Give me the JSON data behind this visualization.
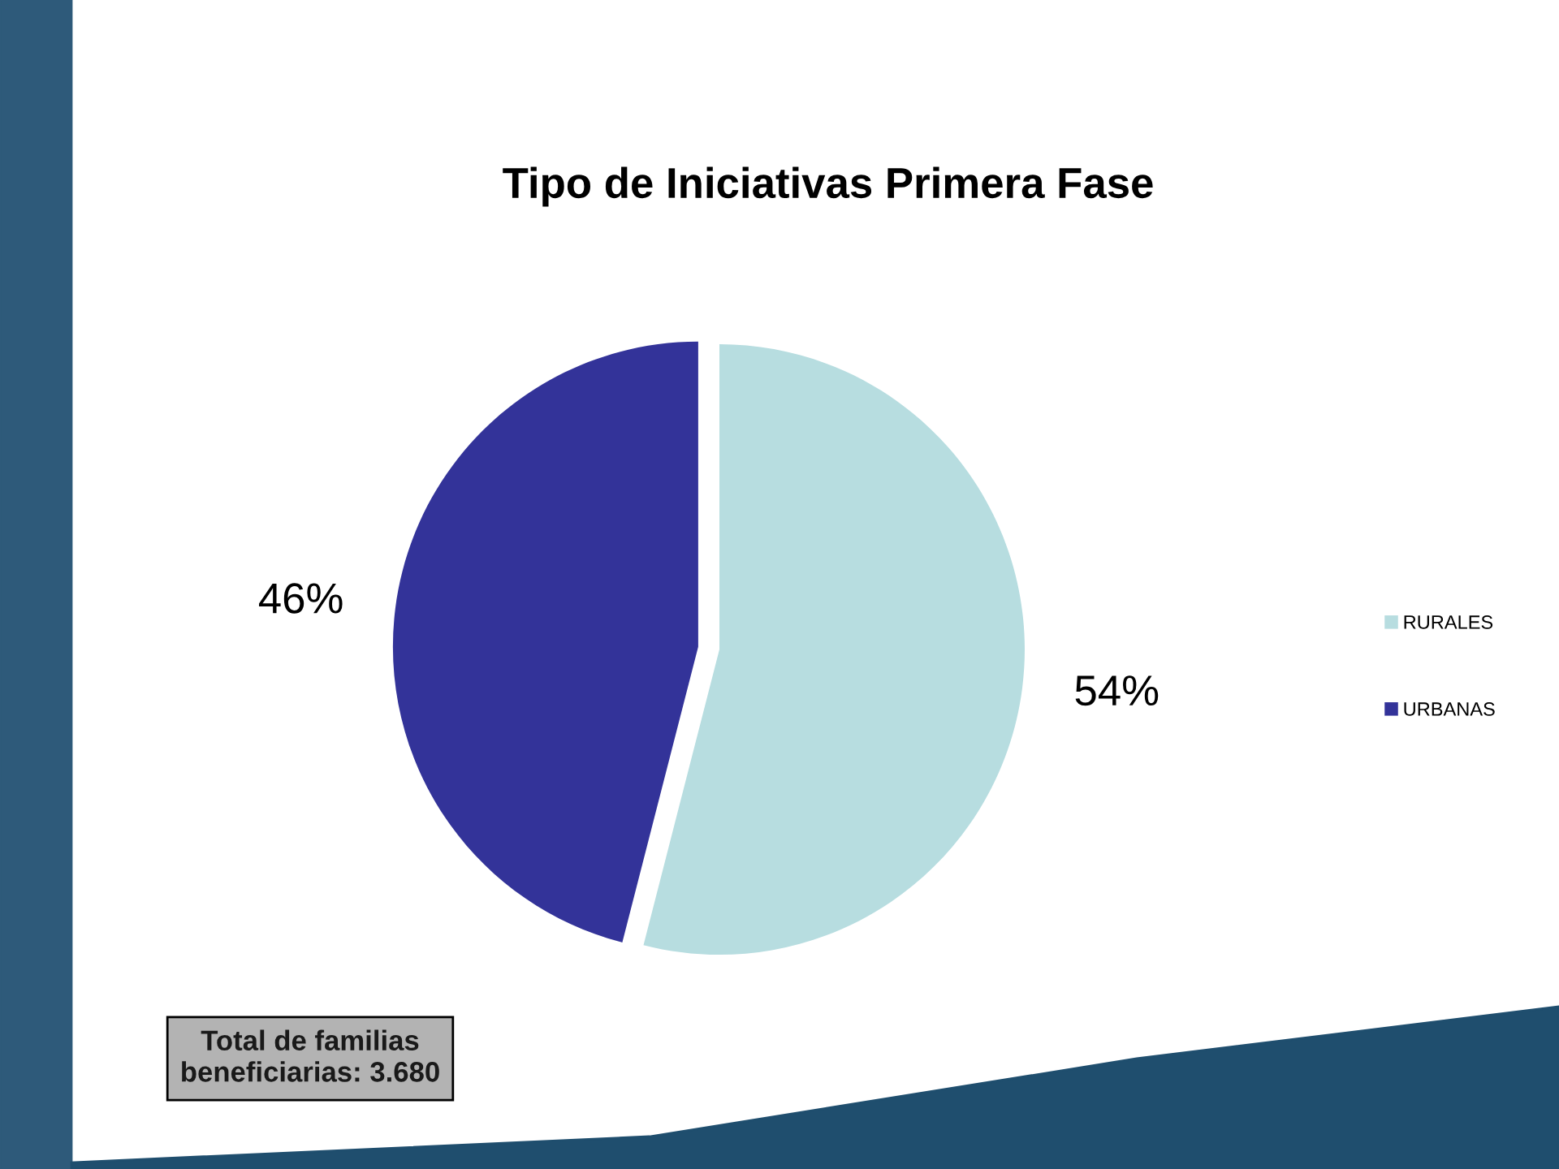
{
  "chart_data": {
    "type": "pie",
    "title": "Tipo de Iniciativas Primera Fase",
    "categories": [
      "RURALES",
      "URBANAS"
    ],
    "values": [
      54,
      46
    ],
    "colors": [
      "#b7dde0",
      "#333399"
    ],
    "value_labels": [
      "54%",
      "46%"
    ],
    "legend": "right",
    "annotations": [
      "Total de familias\nbeneficiarias: 3.680"
    ]
  }
}
